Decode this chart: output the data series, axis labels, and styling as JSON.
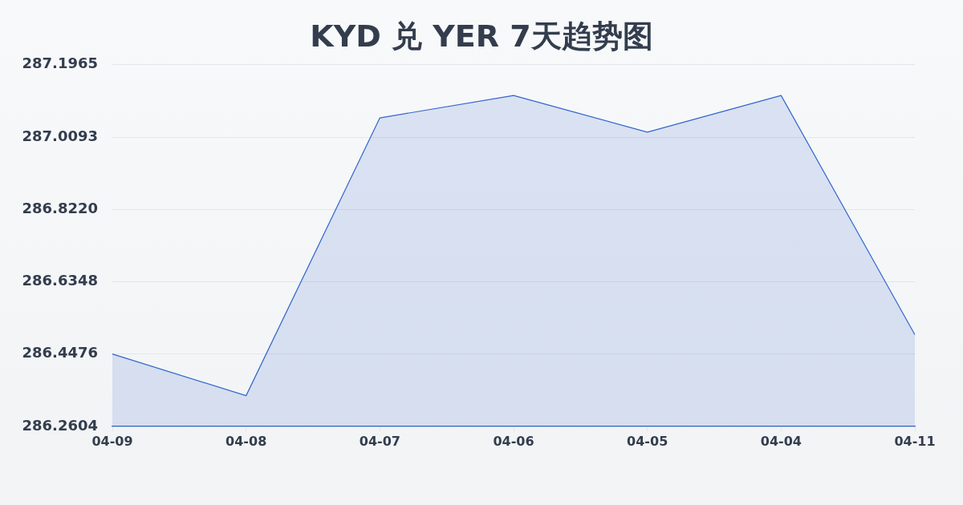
{
  "chart_data": {
    "type": "area",
    "title": "KYD 兑 YER 7天趋势图",
    "categories": [
      "04-09",
      "04-08",
      "04-07",
      "04-06",
      "04-05",
      "04-04",
      "04-11"
    ],
    "values": [
      286.448,
      286.34,
      287.059,
      287.117,
      287.022,
      287.117,
      286.498
    ],
    "color": "#3366cc",
    "ylim": [
      286.2604,
      287.1965
    ],
    "yticks": [
      286.2604,
      286.4476,
      286.6348,
      {
        "value": 286.822,
        "label": "286.8220"
      },
      287.0093,
      287.1965
    ],
    "grid": "y"
  }
}
